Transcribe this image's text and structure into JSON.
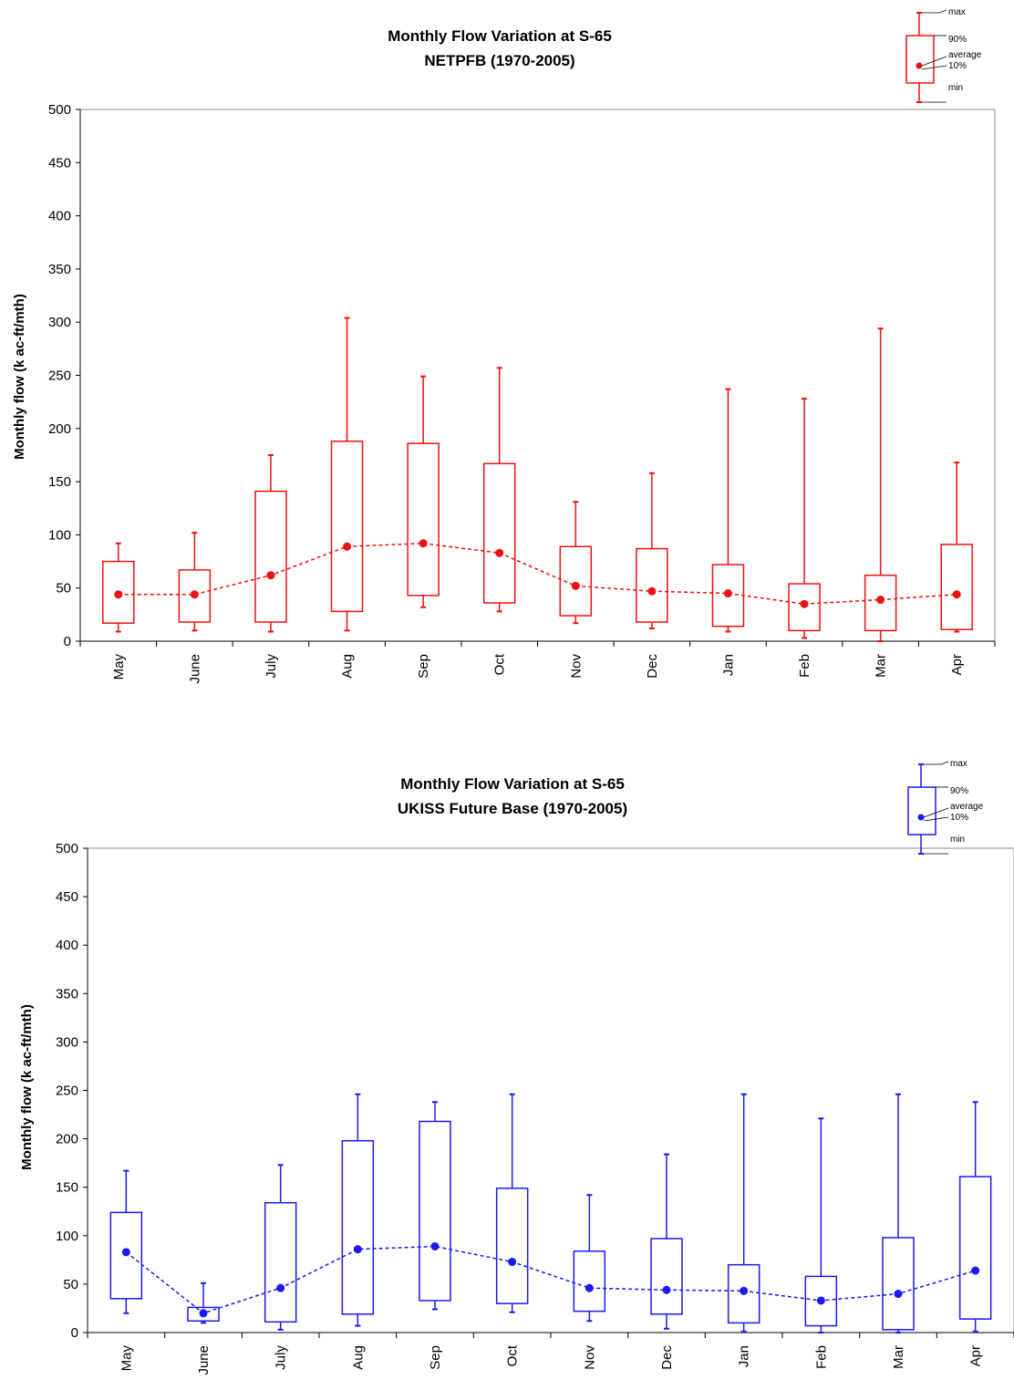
{
  "chart_data": [
    {
      "type": "box",
      "title": "Monthly Flow Variation at S-65",
      "subtitle": "NETPFB (1970-2005)",
      "xlabel": "",
      "ylabel": "Monthly flow (k ac-ft/mth)",
      "ylim": [
        0,
        500
      ],
      "yticks": [
        "0",
        "50",
        "100",
        "150",
        "200",
        "250",
        "300",
        "350",
        "400",
        "450",
        "500"
      ],
      "grid": false,
      "color": "#ee1111",
      "categories": [
        "May",
        "June",
        "July",
        "Aug",
        "Sep",
        "Oct",
        "Nov",
        "Dec",
        "Jan",
        "Feb",
        "Mar",
        "Apr"
      ],
      "series": [
        {
          "name": "max",
          "values": [
            92,
            102,
            175,
            304,
            249,
            257,
            131,
            158,
            237,
            228,
            294,
            168
          ]
        },
        {
          "name": "90%",
          "values": [
            75,
            67,
            141,
            188,
            186,
            167,
            89,
            87,
            72,
            54,
            62,
            91
          ]
        },
        {
          "name": "average",
          "values": [
            44,
            44,
            62,
            89,
            92,
            83,
            52,
            47,
            45,
            35,
            39,
            44
          ]
        },
        {
          "name": "10%",
          "values": [
            17,
            18,
            18,
            28,
            43,
            36,
            24,
            18,
            14,
            10,
            10,
            11
          ]
        },
        {
          "name": "min",
          "values": [
            9,
            10,
            9,
            10,
            32,
            28,
            17,
            12,
            9,
            3,
            0,
            9
          ]
        }
      ],
      "legend": {
        "labels": [
          "max",
          "90%",
          "average",
          "10%",
          "min"
        ],
        "position": "top-right"
      }
    },
    {
      "type": "box",
      "title": "Monthly Flow Variation at S-65",
      "subtitle": "UKISS Future Base (1970-2005)",
      "xlabel": "",
      "ylabel": "Monthly flow (k ac-ft/mth)",
      "ylim": [
        0,
        500
      ],
      "yticks": [
        "0",
        "50",
        "100",
        "150",
        "200",
        "250",
        "300",
        "350",
        "400",
        "450",
        "500"
      ],
      "grid": false,
      "color": "#1a1aee",
      "categories": [
        "May",
        "June",
        "July",
        "Aug",
        "Sep",
        "Oct",
        "Nov",
        "Dec",
        "Jan",
        "Feb",
        "Mar",
        "Apr"
      ],
      "series": [
        {
          "name": "max",
          "values": [
            167,
            51,
            173,
            246,
            238,
            246,
            142,
            184,
            246,
            221,
            246,
            238
          ]
        },
        {
          "name": "90%",
          "values": [
            124,
            26,
            134,
            198,
            218,
            149,
            84,
            97,
            70,
            58,
            98,
            161
          ]
        },
        {
          "name": "average",
          "values": [
            83,
            20,
            46,
            86,
            89,
            73,
            46,
            44,
            43,
            33,
            40,
            64
          ]
        },
        {
          "name": "10%",
          "values": [
            35,
            12,
            11,
            19,
            33,
            30,
            22,
            19,
            10,
            7,
            3,
            14
          ]
        },
        {
          "name": "min",
          "values": [
            20,
            10,
            3,
            7,
            24,
            21,
            12,
            4,
            1,
            0,
            0,
            1
          ]
        }
      ],
      "legend": {
        "labels": [
          "max",
          "90%",
          "average",
          "10%",
          "min"
        ],
        "position": "top-right"
      }
    }
  ]
}
